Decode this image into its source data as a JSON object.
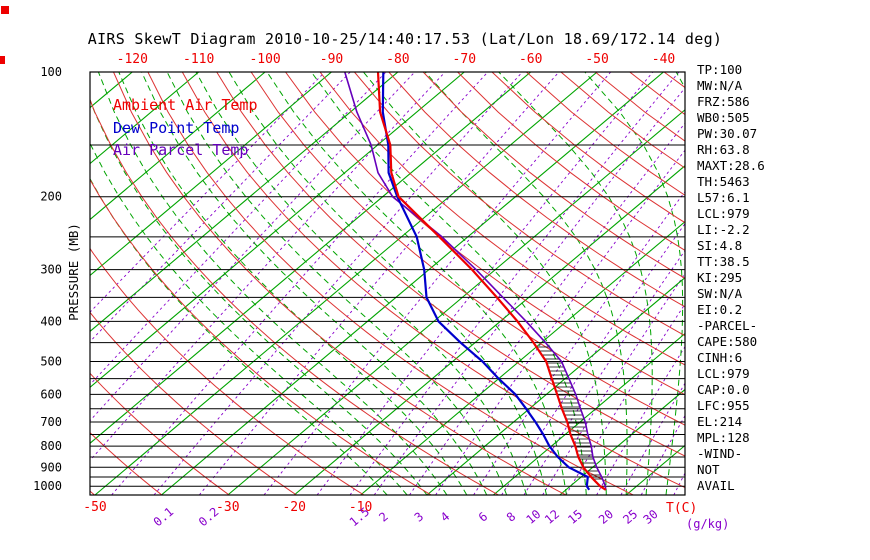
{
  "title": "AIRS SkewT Diagram 2010-10-25/14:40:17.53 (Lat/Lon 18.69/172.14 deg)",
  "colors": {
    "ambient_temp": "#ee0000",
    "dew_point": "#0000cc",
    "parcel_temp": "#6600bb",
    "isotherm": "#00a400",
    "moist_adiabat": "#00a400",
    "dry_adiabat": "#dd3333",
    "mixing_ratio": "#8800cc",
    "pressure_lines": "#000000",
    "axis_text": "#000000",
    "temp_labels": "#ee0000",
    "hatch": "#000000"
  },
  "legend": {
    "items": [
      {
        "label": "Ambient Air Temp",
        "color_key": "ambient_temp"
      },
      {
        "label": "Dew Point Temp",
        "color_key": "dew_point"
      },
      {
        "label": "Air Parcel Temp",
        "color_key": "parcel_temp"
      }
    ]
  },
  "stats_panel": {
    "lines": [
      "TP:100",
      "MW:N/A",
      "FRZ:586",
      "WB0:505",
      "PW:30.07",
      "RH:63.8",
      "MAXT:28.6",
      "TH:5463",
      "L57:6.1",
      "LCL:979",
      "LI:-2.2",
      "SI:4.8",
      "TT:38.5",
      "KI:295",
      "SW:N/A",
      "EI:0.2",
      "-PARCEL-",
      "CAPE:580",
      "CINH:6",
      "LCL:979",
      "CAP:0.0",
      "LFC:955",
      "EL:214",
      "MPL:128",
      "-WIND-",
      "NOT",
      "AVAIL"
    ]
  },
  "axes": {
    "pressure_axis_title": "PRESSURE (MB)",
    "pressure_ticks": [
      100,
      200,
      300,
      400,
      500,
      600,
      700,
      800,
      900,
      1000
    ],
    "top_temp_ticks": [
      -120,
      -110,
      -100,
      -90,
      -80,
      -70,
      -60,
      -50,
      -40
    ],
    "bottom_temp_ticks": [
      -50,
      -30,
      -20,
      -10
    ],
    "temp_unit_label": "T(C)",
    "mixing_unit_label": "(g/kg)",
    "mixing_ratio_labels": [
      "0.1",
      "0.2",
      "1.5",
      "2",
      "3",
      "4",
      "6",
      "8",
      "10",
      "12",
      "15",
      "20",
      "25",
      "30"
    ]
  },
  "chart_data": {
    "type": "skewt-log-p",
    "pressure_range_mb": [
      100,
      1050
    ],
    "temp_at_bottom_range_c": [
      -50.75,
      38.86
    ],
    "skew": 1.187,
    "grid": "skew-t background: isotherms, dry adiabats, moist adiabats, mixing ratio lines, log-p pressure lines",
    "isotherm_range_c": [
      -120,
      40
    ],
    "isotherm_step_c": 10,
    "dry_adiabat_theta_k": [
      220,
      230,
      240,
      250,
      260,
      270,
      280,
      290,
      300,
      310,
      320,
      330,
      340,
      350,
      360,
      370,
      380,
      390,
      400,
      410,
      420,
      430,
      440,
      450
    ],
    "moist_adiabat_surface_temps_c": [
      -6,
      -3,
      0,
      3,
      6,
      9,
      12,
      15,
      18,
      21,
      24,
      27,
      30,
      33,
      36,
      39,
      42
    ],
    "mixing_ratio_lines_gkg": [
      0.001,
      0.002,
      0.005,
      0.01,
      0.02,
      0.05,
      0.1,
      0.2,
      0.5,
      1,
      1.5,
      2,
      3,
      4,
      6,
      8,
      10,
      12,
      15,
      20,
      25,
      30,
      40
    ],
    "pressure_gridline_step_mb": 50,
    "cape_hatch_pressure_range_mb": [
      460,
      975
    ],
    "sounding": {
      "pressure_mb": [
        1020,
        1000,
        950,
        900,
        850,
        800,
        750,
        700,
        650,
        600,
        550,
        500,
        450,
        400,
        350,
        300,
        250,
        200,
        175,
        150,
        125,
        100
      ],
      "ambient_temp_c": [
        26.0,
        24.5,
        21.5,
        18.6,
        16.0,
        13.6,
        10.8,
        8.1,
        4.9,
        1.6,
        -2.0,
        -5.9,
        -11.2,
        -17.4,
        -24.8,
        -33.5,
        -44.3,
        -57.6,
        -63.0,
        -68.1,
        -75.5,
        -83.0
      ],
      "dew_point_c": [
        23.5,
        22.5,
        21.0,
        16.4,
        12.9,
        9.7,
        6.7,
        3.3,
        -0.5,
        -4.7,
        -10.0,
        -15.5,
        -22.2,
        -29.3,
        -35.4,
        -40.7,
        -47.7,
        -57.8,
        -63.4,
        -68.4,
        -75.1,
        -82.2
      ],
      "parcel_temp_c": [
        26.0,
        25.3,
        23.1,
        20.6,
        18.2,
        16.0,
        13.4,
        10.8,
        7.7,
        4.4,
        0.6,
        -3.6,
        -9.4,
        -16.1,
        -23.9,
        -32.9,
        -43.9,
        -58.5,
        -65.0,
        -71.0,
        -79.0,
        -88.0
      ]
    }
  }
}
